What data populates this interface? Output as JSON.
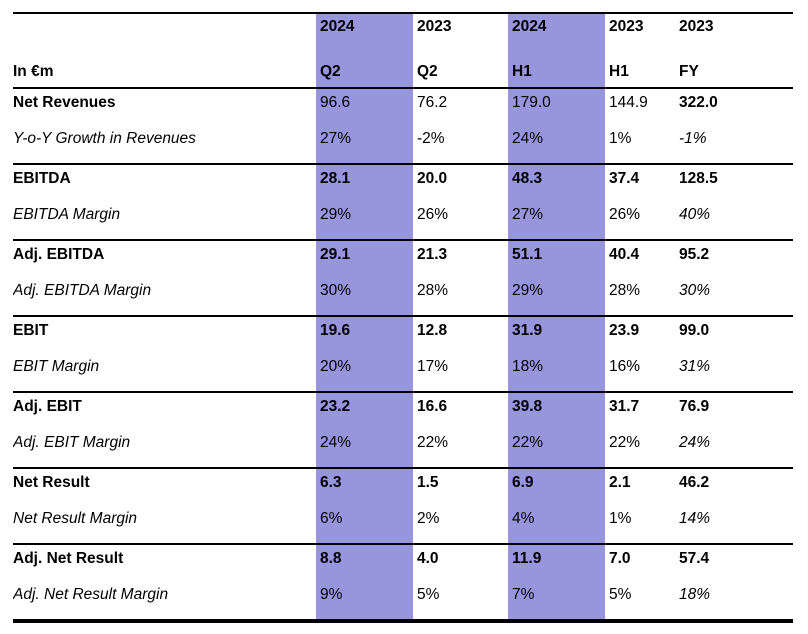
{
  "colors": {
    "highlight_band": "#9795DC",
    "border": "#000000",
    "text": "#000000",
    "background": "#ffffff"
  },
  "table": {
    "unit_label": "In €m",
    "column_headers": [
      {
        "year": "2024",
        "period": "Q2",
        "highlighted": true
      },
      {
        "year": "2023",
        "period": "Q2",
        "highlighted": false
      },
      {
        "year": "2024",
        "period": "H1",
        "highlighted": true
      },
      {
        "year": "2023",
        "period": "H1",
        "highlighted": false
      },
      {
        "year": "2023",
        "period": "FY",
        "highlighted": false
      }
    ],
    "rows": [
      {
        "label": "Net Revenues",
        "kind": "value",
        "values": [
          "96.6",
          "76.2",
          "179.0",
          "144.9",
          "322.0"
        ],
        "styles": [
          "regular",
          "regular",
          "regular",
          "regular",
          "bold"
        ]
      },
      {
        "label": "Y-o-Y Growth in Revenues",
        "kind": "margin",
        "values": [
          "27%",
          "-2%",
          "24%",
          "1%",
          "-1%"
        ],
        "styles": [
          "regular",
          "regular",
          "regular",
          "regular",
          "italic"
        ]
      },
      {
        "label": "EBITDA",
        "kind": "value",
        "values": [
          "28.1",
          "20.0",
          "48.3",
          "37.4",
          "128.5"
        ],
        "styles": [
          "bold",
          "bold",
          "bold",
          "bold",
          "bold"
        ]
      },
      {
        "label": "EBITDA Margin",
        "kind": "margin",
        "values": [
          "29%",
          "26%",
          "27%",
          "26%",
          "40%"
        ],
        "styles": [
          "regular",
          "regular",
          "regular",
          "regular",
          "italic"
        ]
      },
      {
        "label": "Adj. EBITDA",
        "kind": "value",
        "values": [
          "29.1",
          "21.3",
          "51.1",
          "40.4",
          "95.2"
        ],
        "styles": [
          "bold",
          "bold",
          "bold",
          "bold",
          "bold"
        ]
      },
      {
        "label": "Adj. EBITDA Margin",
        "kind": "margin",
        "values": [
          "30%",
          "28%",
          "29%",
          "28%",
          "30%"
        ],
        "styles": [
          "regular",
          "regular",
          "regular",
          "regular",
          "italic"
        ]
      },
      {
        "label": "EBIT",
        "kind": "value",
        "values": [
          "19.6",
          "12.8",
          "31.9",
          "23.9",
          "99.0"
        ],
        "styles": [
          "bold",
          "bold",
          "bold",
          "bold",
          "bold"
        ]
      },
      {
        "label": "EBIT Margin",
        "kind": "margin",
        "values": [
          "20%",
          "17%",
          "18%",
          "16%",
          "31%"
        ],
        "styles": [
          "regular",
          "regular",
          "regular",
          "regular",
          "italic"
        ]
      },
      {
        "label": "Adj. EBIT",
        "kind": "value",
        "values": [
          "23.2",
          "16.6",
          "39.8",
          "31.7",
          "76.9"
        ],
        "styles": [
          "bold",
          "bold",
          "bold",
          "bold",
          "bold"
        ]
      },
      {
        "label": "Adj. EBIT Margin",
        "kind": "margin",
        "values": [
          "24%",
          "22%",
          "22%",
          "22%",
          "24%"
        ],
        "styles": [
          "regular",
          "regular",
          "regular",
          "regular",
          "italic"
        ]
      },
      {
        "label": "Net Result",
        "kind": "value",
        "values": [
          "6.3",
          "1.5",
          "6.9",
          "2.1",
          "46.2"
        ],
        "styles": [
          "bold",
          "bold",
          "bold",
          "bold",
          "bold"
        ]
      },
      {
        "label": "Net Result Margin",
        "kind": "margin",
        "values": [
          "6%",
          "2%",
          "4%",
          "1%",
          "14%"
        ],
        "styles": [
          "regular",
          "regular",
          "regular",
          "regular",
          "italic"
        ]
      },
      {
        "label": "Adj. Net Result",
        "kind": "value",
        "values": [
          "8.8",
          "4.0",
          "11.9",
          "7.0",
          "57.4"
        ],
        "styles": [
          "bold",
          "bold",
          "bold",
          "bold",
          "bold"
        ]
      },
      {
        "label": "Adj. Net Result Margin",
        "kind": "margin",
        "values": [
          "9%",
          "5%",
          "7%",
          "5%",
          "18%"
        ],
        "styles": [
          "regular",
          "regular",
          "regular",
          "regular",
          "italic"
        ]
      }
    ]
  }
}
